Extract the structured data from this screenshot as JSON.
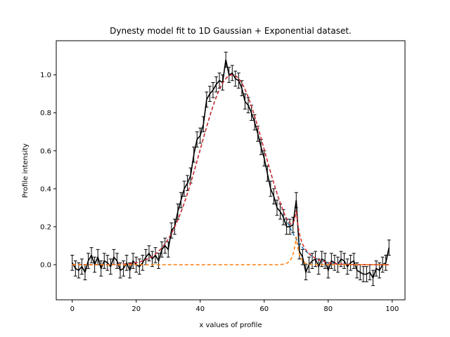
{
  "chart_data": {
    "type": "line",
    "title": "Dynesty model fit to 1D Gaussian + Exponential dataset.",
    "xlabel": "x values of profile",
    "ylabel": "Profile intensity",
    "xlim": [
      -5,
      104
    ],
    "ylim": [
      -0.185,
      1.18
    ],
    "xticks": [
      0,
      20,
      40,
      60,
      80,
      100
    ],
    "yticks": [
      0.0,
      0.2,
      0.4,
      0.6,
      0.8,
      1.0
    ],
    "xtick_labels": [
      "0",
      "20",
      "40",
      "60",
      "80",
      "100"
    ],
    "ytick_labels": [
      "0.0",
      "0.2",
      "0.4",
      "0.6",
      "0.8",
      "1.0"
    ],
    "grid": false,
    "colors": {
      "data": "#000000",
      "gaussian": "#1f77b4",
      "model": "#d62728",
      "exponential": "#ff7f0e"
    },
    "series": [
      {
        "key": "data",
        "style": "errorbar",
        "x": [
          0,
          1,
          2,
          3,
          4,
          5,
          6,
          7,
          8,
          9,
          10,
          11,
          12,
          13,
          14,
          15,
          16,
          17,
          18,
          19,
          20,
          21,
          22,
          23,
          24,
          25,
          26,
          27,
          28,
          29,
          30,
          31,
          32,
          33,
          34,
          35,
          36,
          37,
          38,
          39,
          40,
          41,
          42,
          43,
          44,
          45,
          46,
          47,
          48,
          49,
          50,
          51,
          52,
          53,
          54,
          55,
          56,
          57,
          58,
          59,
          60,
          61,
          62,
          63,
          64,
          65,
          66,
          67,
          68,
          69,
          70,
          71,
          72,
          73,
          74,
          75,
          76,
          77,
          78,
          79,
          80,
          81,
          82,
          83,
          84,
          85,
          86,
          87,
          88,
          89,
          90,
          91,
          92,
          93,
          94,
          95,
          96,
          97,
          98,
          99
        ],
        "y": [
          0.01,
          -0.02,
          -0.03,
          -0.01,
          -0.04,
          0.02,
          0.05,
          0.0,
          0.04,
          -0.02,
          0.02,
          0.01,
          -0.01,
          0.04,
          0.02,
          -0.03,
          -0.02,
          0.01,
          -0.03,
          0.02,
          0.0,
          -0.01,
          0.01,
          0.04,
          0.06,
          0.03,
          0.05,
          0.02,
          0.08,
          0.1,
          0.08,
          0.18,
          0.2,
          0.28,
          0.34,
          0.4,
          0.43,
          0.47,
          0.58,
          0.66,
          0.68,
          0.74,
          0.87,
          0.9,
          0.92,
          0.95,
          0.97,
          0.96,
          1.08,
          1.0,
          1.01,
          0.98,
          0.97,
          0.93,
          0.86,
          0.84,
          0.8,
          0.75,
          0.69,
          0.62,
          0.56,
          0.48,
          0.4,
          0.36,
          0.3,
          0.28,
          0.25,
          0.2,
          0.2,
          0.21,
          0.34,
          0.07,
          0.04,
          -0.04,
          0.0,
          0.02,
          0.03,
          -0.01,
          0.03,
          0.02,
          -0.03,
          0.02,
          0.01,
          0.0,
          0.03,
          0.02,
          -0.01,
          0.01,
          0.02,
          -0.03,
          -0.04,
          -0.05,
          -0.05,
          -0.04,
          -0.07,
          -0.02,
          -0.03,
          0.0,
          0.01,
          0.09
        ],
        "yerr": 0.04
      },
      {
        "key": "gaussian",
        "style": "dashed",
        "gaussian": {
          "centre": 50,
          "sigma": 10,
          "normalization": 1.0
        }
      },
      {
        "key": "model",
        "style": "dashed",
        "gaussian": {
          "centre": 50,
          "sigma": 10,
          "normalization": 1.0
        },
        "exponential": {
          "centre": 70,
          "rate": 1.0,
          "normalization": 0.15
        }
      },
      {
        "key": "exponential",
        "style": "dashed",
        "exponential": {
          "centre": 70,
          "rate": 1.0,
          "normalization": 0.15
        }
      }
    ]
  }
}
